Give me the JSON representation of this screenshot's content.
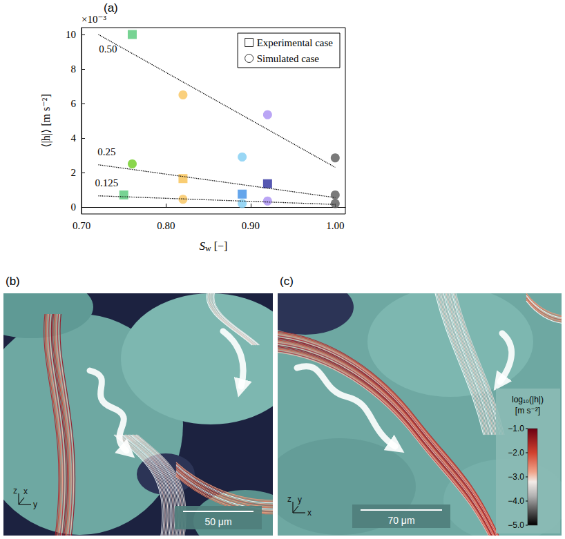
{
  "chart_data": {
    "type": "scatter",
    "title": "(a)",
    "x_label": "Sw [−]",
    "y_label": "⟨|h|⟩ [m s⁻²]",
    "y_multiplier": "×10⁻³",
    "xlim": [
      0.7,
      1.012
    ],
    "xticks": [
      {
        "value": 0.7,
        "label": "0.70"
      },
      {
        "value": 0.8,
        "label": "0.80"
      },
      {
        "value": 0.9,
        "label": "0.90"
      },
      {
        "value": 1.0,
        "label": "1.00"
      }
    ],
    "ylim": [
      -0.4,
      10.4
    ],
    "yticks": [
      0,
      2,
      4,
      6,
      8,
      10
    ],
    "grid": false,
    "legend": "upper right",
    "series": [
      {
        "name": "Experimental case",
        "type": "scatter",
        "marker": "square",
        "x": [
          0.76,
          0.75,
          0.82,
          0.89,
          0.92
        ],
        "values": [
          10.0,
          0.7,
          1.65,
          0.75,
          1.35
        ],
        "colors": [
          "#55c878",
          "#55c878",
          "#f7c050",
          "#3d8ee6",
          "#2b2d9e"
        ]
      },
      {
        "name": "Simulated case",
        "type": "scatter",
        "marker": "circle",
        "x": [
          0.76,
          0.82,
          0.82,
          0.89,
          0.89,
          0.92,
          0.92,
          1.0,
          1.0,
          1.0
        ],
        "values": [
          2.5,
          6.5,
          0.45,
          2.9,
          0.2,
          5.35,
          0.35,
          2.85,
          0.7,
          0.2
        ],
        "colors": [
          "#6dcc1f",
          "#f9c45c",
          "#f9c45c",
          "#80cdf2",
          "#80cdf2",
          "#a98ef2",
          "#a98ef2",
          "#595959",
          "#595959",
          "#595959"
        ]
      },
      {
        "name": "0.50",
        "type": "line",
        "line_style": "dotted",
        "color": "#000000",
        "x": [
          0.72,
          1.0
        ],
        "values": [
          10.0,
          2.3
        ]
      },
      {
        "name": "0.25",
        "type": "line",
        "line_style": "dotted",
        "color": "#000000",
        "x": [
          0.72,
          1.0
        ],
        "values": [
          2.45,
          0.55
        ]
      },
      {
        "name": "0.125",
        "type": "line",
        "line_style": "dotted",
        "color": "#000000",
        "x": [
          0.72,
          1.0
        ],
        "values": [
          0.65,
          0.15
        ]
      }
    ]
  },
  "images": [
    {
      "label": "(b)",
      "scale_bar": "50 μm",
      "axes": [
        "z",
        "x",
        "y"
      ]
    },
    {
      "label": "(c)",
      "scale_bar": "70 μm",
      "axes": [
        "z",
        "y",
        "x"
      ],
      "colorbar": {
        "title": "log₁₀(|h|) [m s⁻²]",
        "range": [
          -5,
          -1
        ],
        "ticks": [
          {
            "value": -1,
            "label": "−1.0"
          },
          {
            "value": -2,
            "label": "−2.0"
          },
          {
            "value": -3,
            "label": "−3.0"
          },
          {
            "value": -4,
            "label": "−4.0"
          },
          {
            "value": -5,
            "label": "−5.0"
          }
        ]
      }
    }
  ]
}
